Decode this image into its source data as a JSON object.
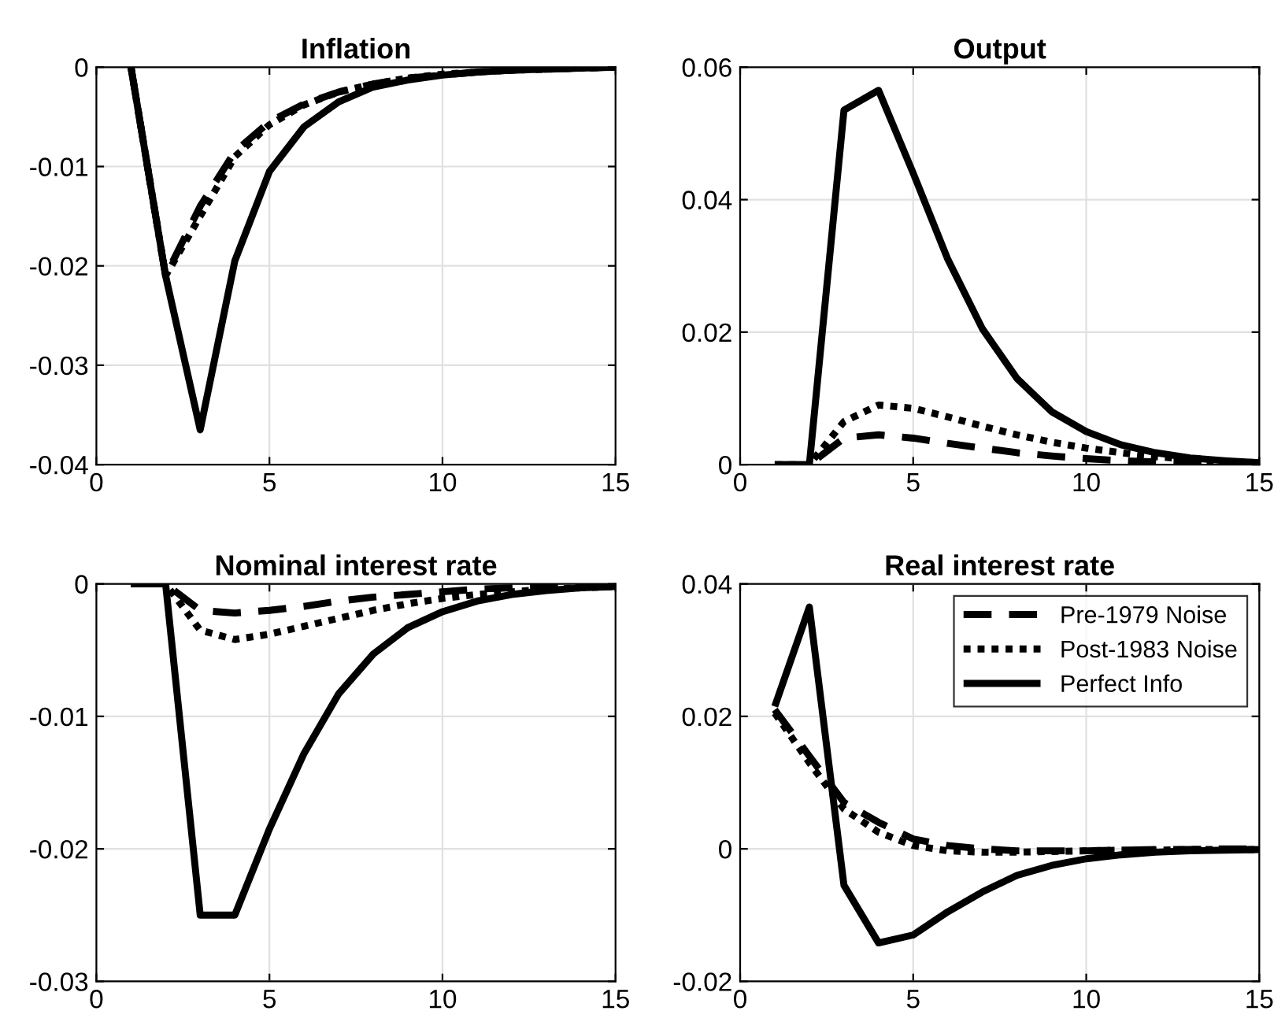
{
  "chart_data": [
    {
      "type": "line",
      "title": "Inflation",
      "x": [
        1,
        2,
        3,
        4,
        5,
        6,
        7,
        8,
        9,
        10,
        11,
        12,
        13,
        14,
        15
      ],
      "xlim": [
        0,
        15
      ],
      "xticks": [
        0,
        5,
        10,
        15
      ],
      "ylim": [
        -0.04,
        0
      ],
      "yticks": [
        -0.04,
        -0.03,
        -0.02,
        -0.01,
        0
      ],
      "grid": true,
      "legend": false,
      "series": [
        {
          "color": "#000000",
          "line_style": "dashed",
          "values": [
            0,
            -0.021,
            -0.014,
            -0.0085,
            -0.0055,
            -0.0037,
            -0.0025,
            -0.0017,
            -0.0011,
            -0.0008,
            -0.0005,
            -0.0003,
            -0.0002,
            -0.0001,
            0
          ]
        },
        {
          "color": "#000000",
          "line_style": "dotted",
          "values": [
            0,
            -0.021,
            -0.015,
            -0.009,
            -0.0058,
            -0.0038,
            -0.0025,
            -0.0017,
            -0.0011,
            -0.0007,
            -0.0005,
            -0.0003,
            -0.0002,
            -0.0001,
            0
          ]
        },
        {
          "color": "#000000",
          "line_style": "solid",
          "values": [
            0,
            -0.021,
            -0.0365,
            -0.0195,
            -0.0105,
            -0.006,
            -0.0035,
            -0.002,
            -0.0013,
            -0.0008,
            -0.0005,
            -0.0003,
            -0.0002,
            -0.0001,
            0
          ]
        }
      ]
    },
    {
      "type": "line",
      "title": "Output",
      "x": [
        1,
        2,
        3,
        4,
        5,
        6,
        7,
        8,
        9,
        10,
        11,
        12,
        13,
        14,
        15
      ],
      "xlim": [
        0,
        15
      ],
      "xticks": [
        0,
        5,
        10,
        15
      ],
      "ylim": [
        0,
        0.06
      ],
      "yticks": [
        0,
        0.02,
        0.04,
        0.06
      ],
      "grid": true,
      "legend": false,
      "series": [
        {
          "color": "#000000",
          "line_style": "dashed",
          "values": [
            0,
            0,
            0.004,
            0.0045,
            0.004,
            0.0032,
            0.0025,
            0.0018,
            0.0013,
            0.0009,
            0.0006,
            0.0004,
            0.0003,
            0.0002,
            0.0001
          ]
        },
        {
          "color": "#000000",
          "line_style": "dotted",
          "values": [
            0,
            0,
            0.0065,
            0.009,
            0.0085,
            0.0072,
            0.0058,
            0.0045,
            0.0034,
            0.0025,
            0.0018,
            0.0012,
            0.0008,
            0.0005,
            0.0003
          ]
        },
        {
          "color": "#000000",
          "line_style": "solid",
          "values": [
            0,
            0,
            0.0535,
            0.0565,
            0.044,
            0.031,
            0.0205,
            0.013,
            0.008,
            0.005,
            0.003,
            0.0018,
            0.001,
            0.0006,
            0.0003
          ]
        }
      ]
    },
    {
      "type": "line",
      "title": "Nominal interest rate",
      "x": [
        1,
        2,
        3,
        4,
        5,
        6,
        7,
        8,
        9,
        10,
        11,
        12,
        13,
        14,
        15
      ],
      "xlim": [
        0,
        15
      ],
      "xticks": [
        0,
        5,
        10,
        15
      ],
      "ylim": [
        -0.03,
        0
      ],
      "yticks": [
        -0.03,
        -0.02,
        -0.01,
        0
      ],
      "grid": true,
      "legend": false,
      "series": [
        {
          "color": "#000000",
          "line_style": "dashed",
          "values": [
            0,
            0,
            -0.002,
            -0.0022,
            -0.002,
            -0.0017,
            -0.0013,
            -0.001,
            -0.0008,
            -0.0006,
            -0.0004,
            -0.0003,
            -0.0002,
            -0.0001,
            0
          ]
        },
        {
          "color": "#000000",
          "line_style": "dotted",
          "values": [
            0,
            0,
            -0.0035,
            -0.0042,
            -0.0038,
            -0.0032,
            -0.0026,
            -0.002,
            -0.0015,
            -0.0011,
            -0.0008,
            -0.0006,
            -0.0004,
            -0.0003,
            -0.0002
          ]
        },
        {
          "color": "#000000",
          "line_style": "solid",
          "values": [
            0,
            0,
            -0.025,
            -0.025,
            -0.0185,
            -0.0128,
            -0.0083,
            -0.0053,
            -0.0033,
            -0.0021,
            -0.0013,
            -0.0008,
            -0.0005,
            -0.0003,
            -0.0002
          ]
        }
      ]
    },
    {
      "type": "line",
      "title": "Real interest rate",
      "x": [
        1,
        2,
        3,
        4,
        5,
        6,
        7,
        8,
        9,
        10,
        11,
        12,
        13,
        14,
        15
      ],
      "xlim": [
        0,
        15
      ],
      "xticks": [
        0,
        5,
        10,
        15
      ],
      "ylim": [
        -0.02,
        0.04
      ],
      "yticks": [
        -0.02,
        0,
        0.02,
        0.04
      ],
      "grid": true,
      "legend": "top right",
      "series": [
        {
          "name": "Pre-1979 Noise",
          "color": "#000000",
          "line_style": "dashed",
          "values": [
            0.021,
            0.014,
            0.007,
            0.004,
            0.0015,
            0.0005,
            0,
            -0.0003,
            -0.0003,
            -0.0003,
            -0.0002,
            -0.0001,
            -0.0001,
            0,
            0
          ]
        },
        {
          "name": "Post-1983 Noise",
          "color": "#000000",
          "line_style": "dotted",
          "values": [
            0.0205,
            0.013,
            0.006,
            0.0025,
            0.0005,
            -0.0003,
            -0.0005,
            -0.0005,
            -0.0004,
            -0.0003,
            -0.0002,
            -0.0002,
            -0.0001,
            -0.0001,
            -0.0001
          ]
        },
        {
          "name": "Perfect Info",
          "color": "#000000",
          "line_style": "solid",
          "values": [
            0.0215,
            0.0365,
            -0.0055,
            -0.0142,
            -0.013,
            -0.0095,
            -0.0065,
            -0.004,
            -0.0025,
            -0.0015,
            -0.0009,
            -0.0005,
            -0.0003,
            -0.0002,
            -0.0001
          ]
        }
      ]
    }
  ]
}
